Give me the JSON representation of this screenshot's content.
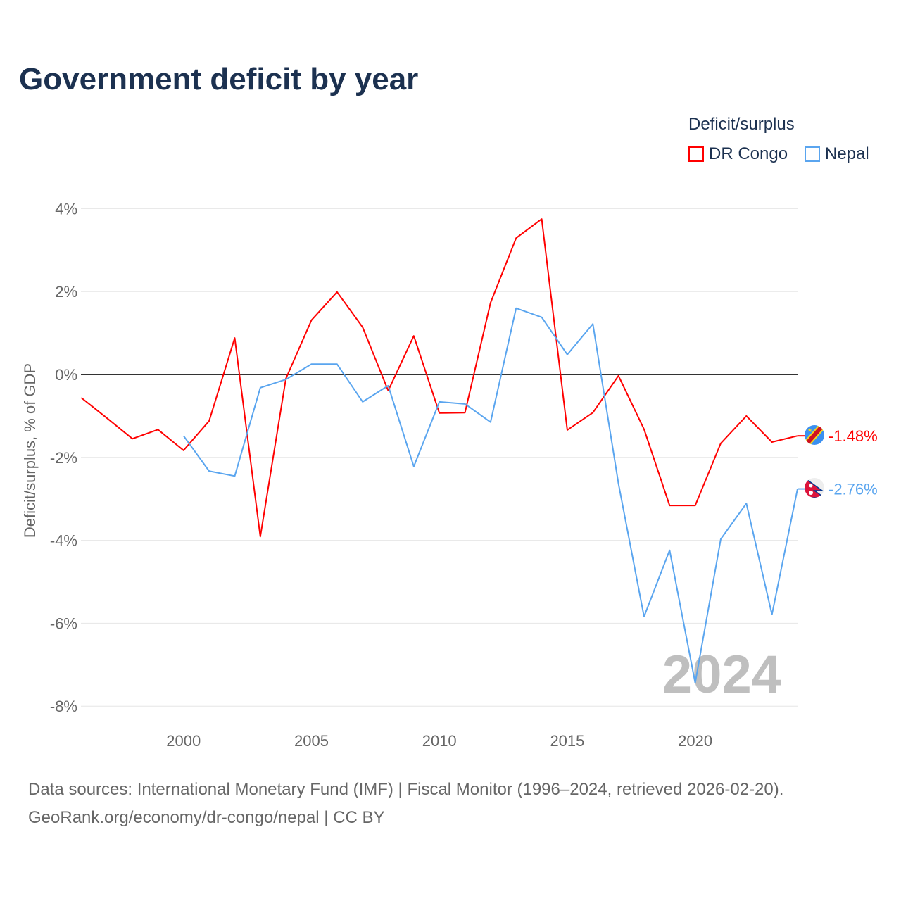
{
  "title": "Government deficit by year",
  "legend": {
    "title": "Deficit/surplus",
    "items": [
      {
        "label": "DR Congo",
        "color": "#ff0000"
      },
      {
        "label": "Nepal",
        "color": "#5aa5ef"
      }
    ]
  },
  "watermark_year": "2024",
  "footer": {
    "line1": "Data sources: International Monetary Fund (IMF) | Fiscal Monitor (1996–2024, retrieved 2026-02-20).",
    "line2": "GeoRank.org/economy/dr-congo/nepal | CC BY"
  },
  "chart_data": {
    "type": "line",
    "title": "Government deficit by year",
    "xlabel": "",
    "ylabel": "Deficit/surplus, % of GDP",
    "xlim": [
      1996,
      2024
    ],
    "ylim": [
      -8,
      4
    ],
    "xticks": [
      2000,
      2005,
      2010,
      2015,
      2020
    ],
    "yticks": [
      4,
      2,
      0,
      -2,
      -4,
      -6,
      -8
    ],
    "ytick_labels": [
      "4%",
      "2%",
      "0%",
      "-2%",
      "-4%",
      "-6%",
      "-8%"
    ],
    "grid": true,
    "legend_position": "top-right",
    "series": [
      {
        "name": "DR Congo",
        "color": "#ff0000",
        "end_label": "-1.48%",
        "x": [
          1996,
          1997,
          1998,
          1999,
          2000,
          2001,
          2002,
          2003,
          2004,
          2005,
          2006,
          2007,
          2008,
          2009,
          2010,
          2011,
          2012,
          2013,
          2014,
          2015,
          2016,
          2017,
          2018,
          2019,
          2020,
          2021,
          2022,
          2023,
          2024
        ],
        "values": [
          -0.56,
          -1.05,
          -1.55,
          -1.33,
          -1.83,
          -1.12,
          0.88,
          -3.91,
          -0.1,
          1.31,
          1.99,
          1.14,
          -0.39,
          0.93,
          -0.93,
          -0.92,
          1.73,
          3.29,
          3.75,
          -1.34,
          -0.92,
          -0.03,
          -1.32,
          -3.16,
          -3.16,
          -1.66,
          -1.0,
          -1.63,
          -1.48
        ]
      },
      {
        "name": "Nepal",
        "color": "#5aa5ef",
        "end_label": "-2.76%",
        "x": [
          2000,
          2001,
          2002,
          2003,
          2004,
          2005,
          2006,
          2007,
          2008,
          2009,
          2010,
          2011,
          2012,
          2013,
          2014,
          2015,
          2016,
          2017,
          2018,
          2019,
          2020,
          2021,
          2022,
          2023,
          2024
        ],
        "values": [
          -1.48,
          -2.33,
          -2.45,
          -0.32,
          -0.12,
          0.25,
          0.25,
          -0.66,
          -0.27,
          -2.22,
          -0.66,
          -0.71,
          -1.15,
          1.6,
          1.38,
          0.48,
          1.22,
          -2.63,
          -5.84,
          -4.24,
          -7.44,
          -3.97,
          -3.11,
          -5.79,
          -2.76
        ]
      }
    ]
  }
}
